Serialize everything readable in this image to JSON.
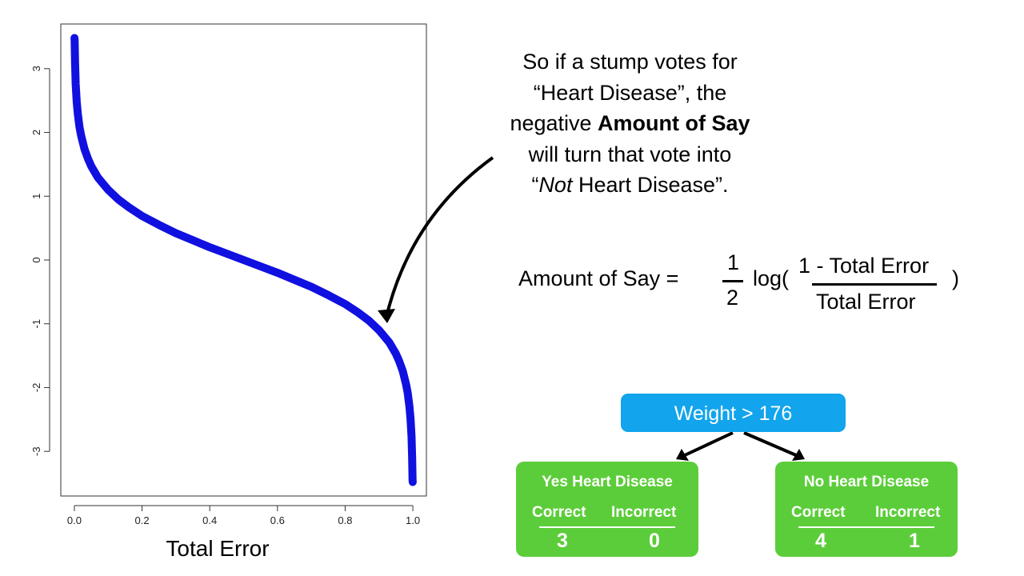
{
  "chart_data": {
    "type": "line",
    "title": "",
    "xlabel": "Total Error",
    "ylabel": "",
    "xlim": [
      -0.04,
      1.04
    ],
    "ylim": [
      -3.7,
      3.7
    ],
    "x_ticks": [
      "0.0",
      "0.2",
      "0.4",
      "0.6",
      "0.8",
      "1.0"
    ],
    "y_ticks": [
      "-3",
      "-2",
      "-1",
      "0",
      "1",
      "2",
      "3"
    ],
    "grid": false,
    "legend": "none",
    "series": [
      {
        "color": "#1010e0",
        "x": [
          0.0005,
          0.001,
          0.002,
          0.004,
          0.007,
          0.01,
          0.015,
          0.02,
          0.03,
          0.04,
          0.05,
          0.07,
          0.1,
          0.13,
          0.16,
          0.2,
          0.25,
          0.3,
          0.35,
          0.4,
          0.45,
          0.5,
          0.55,
          0.6,
          0.65,
          0.7,
          0.75,
          0.8,
          0.84,
          0.87,
          0.9,
          0.93,
          0.95,
          0.96,
          0.97,
          0.98,
          0.985,
          0.99,
          0.993,
          0.996,
          0.998,
          0.999,
          0.9995
        ],
        "y": [
          3.8,
          3.45,
          3.11,
          2.76,
          2.48,
          2.3,
          2.09,
          1.95,
          1.74,
          1.59,
          1.47,
          1.29,
          1.1,
          0.95,
          0.83,
          0.69,
          0.55,
          0.42,
          0.31,
          0.2,
          0.1,
          0.0,
          -0.1,
          -0.2,
          -0.31,
          -0.42,
          -0.55,
          -0.69,
          -0.83,
          -0.95,
          -1.1,
          -1.29,
          -1.47,
          -1.59,
          -1.74,
          -1.95,
          -2.09,
          -2.3,
          -2.48,
          -2.76,
          -3.11,
          -3.45,
          -3.8
        ]
      }
    ]
  },
  "annotation": {
    "line1": "So if a stump votes for",
    "line2": "“Heart Disease”, the",
    "line3_pre": "negative ",
    "line3_bold": "Amount of Say",
    "line4": "will turn that vote into",
    "line5_quote_open": "“",
    "line5_italic": "Not",
    "line5_rest": " Heart Disease”."
  },
  "formula": {
    "lhs": "Amount of Say =",
    "half_num": "1",
    "half_den": "2",
    "log_open": "log(",
    "frac_num": "1 - Total Error",
    "frac_den": "Total Error",
    "close": ")"
  },
  "stump": {
    "root": "Weight > 176",
    "left": {
      "title": "Yes Heart Disease",
      "correct_label": "Correct",
      "incorrect_label": "Incorrect",
      "correct": "3",
      "incorrect": "0"
    },
    "right": {
      "title": "No Heart Disease",
      "correct_label": "Correct",
      "incorrect_label": "Incorrect",
      "correct": "4",
      "incorrect": "1"
    }
  }
}
